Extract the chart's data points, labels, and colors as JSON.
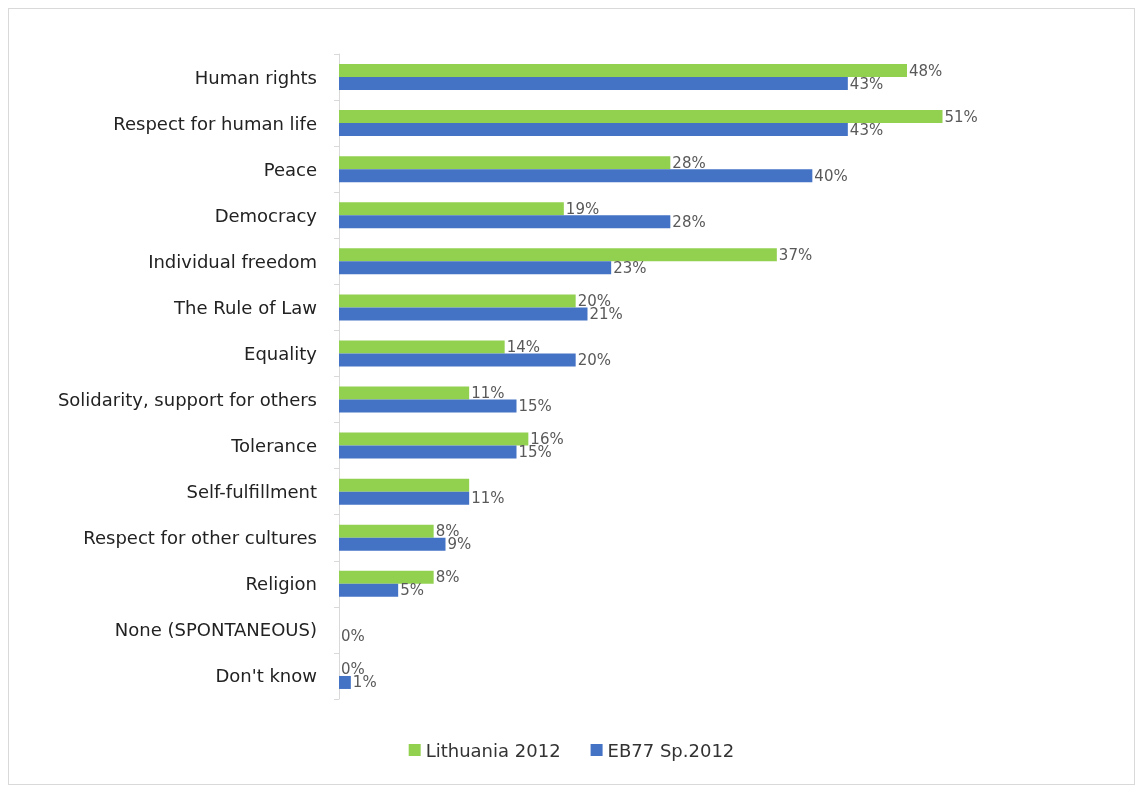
{
  "chart_data": {
    "type": "bar",
    "orientation": "horizontal",
    "categories": [
      "Human rights",
      "Respect for human life",
      "Peace",
      "Democracy",
      "Individual freedom",
      "The Rule of Law",
      "Equality",
      "Solidarity, support for others",
      "Tolerance",
      "Self-fulfillment",
      "Respect for other cultures",
      "Religion",
      "None (SPONTANEOUS)",
      "Don't know"
    ],
    "series": [
      {
        "name": "Lithuania 2012",
        "color": "#92d050",
        "values": [
          48,
          51,
          28,
          19,
          37,
          20,
          14,
          11,
          16,
          11,
          8,
          8,
          0,
          0
        ],
        "value_labels": [
          "48%",
          "51%",
          "28%",
          "19%",
          "37%",
          "20%",
          "14%",
          "11%",
          "16%",
          null,
          "8%",
          "8%",
          null,
          "0%"
        ]
      },
      {
        "name": "EB77 Sp.2012",
        "color": "#4472c4",
        "values": [
          43,
          43,
          40,
          28,
          23,
          21,
          20,
          15,
          15,
          11,
          9,
          5,
          0,
          1
        ],
        "value_labels": [
          "43%",
          "43%",
          "40%",
          "28%",
          "23%",
          "21%",
          "20%",
          "15%",
          "15%",
          "11%",
          "9%",
          "5%",
          "0%",
          "1%"
        ]
      }
    ],
    "legend": "bottom",
    "grid": false,
    "tick_labels": "y"
  }
}
